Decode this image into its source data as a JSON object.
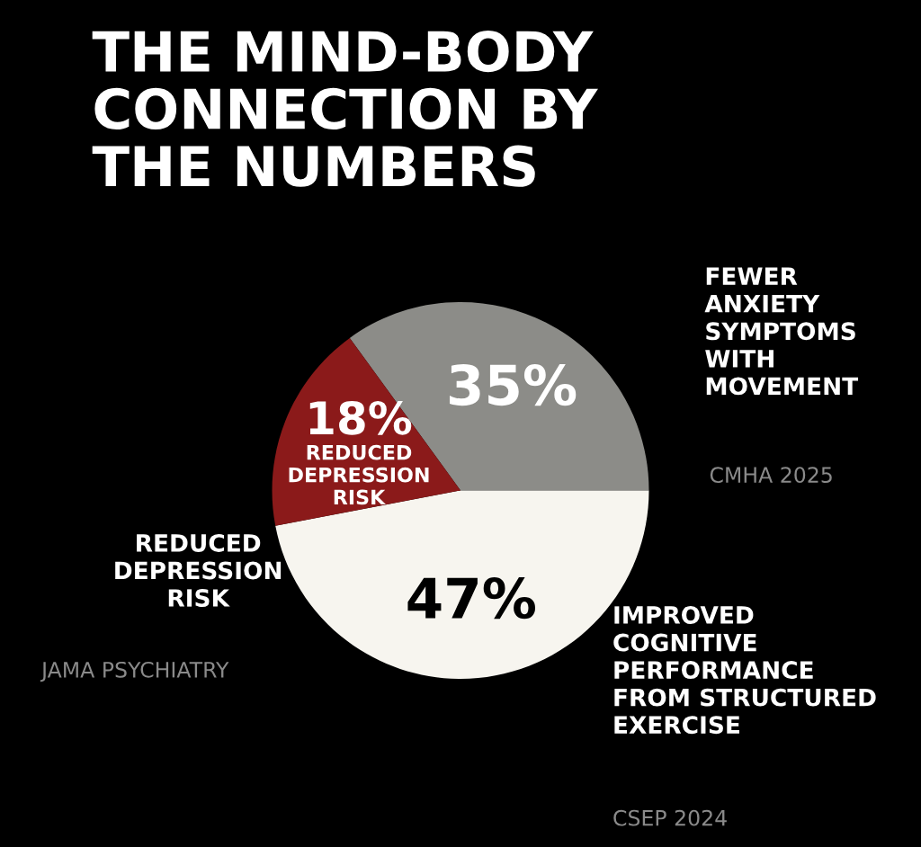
{
  "chart_data": {
    "type": "pie",
    "title": "THE MIND-BODY\nCONNECTION BY\nTHE NUMBERS",
    "categories": [
      "FEWER\nANXIETY\nSYMPTOMS\nWITH\nMOVEMENT",
      "IMPROVED\nCOGNITIVE\nPERFORMANCE\nFROM STRUCTURED\nEXERCISE",
      "REDUCED\nDEPRESSION\nRISK"
    ],
    "values": [
      35,
      47,
      18
    ],
    "value_labels": [
      "35%",
      "47%",
      "18%"
    ],
    "colors": [
      "#8c8c88",
      "#f7f5ef",
      "#8b1a1a"
    ],
    "annotations": [
      "REDUCED\nDEPRESSION\nRISK",
      "CMHA 2025",
      "CSEP 2024",
      "JAMA PSYCHIATRY"
    ]
  }
}
